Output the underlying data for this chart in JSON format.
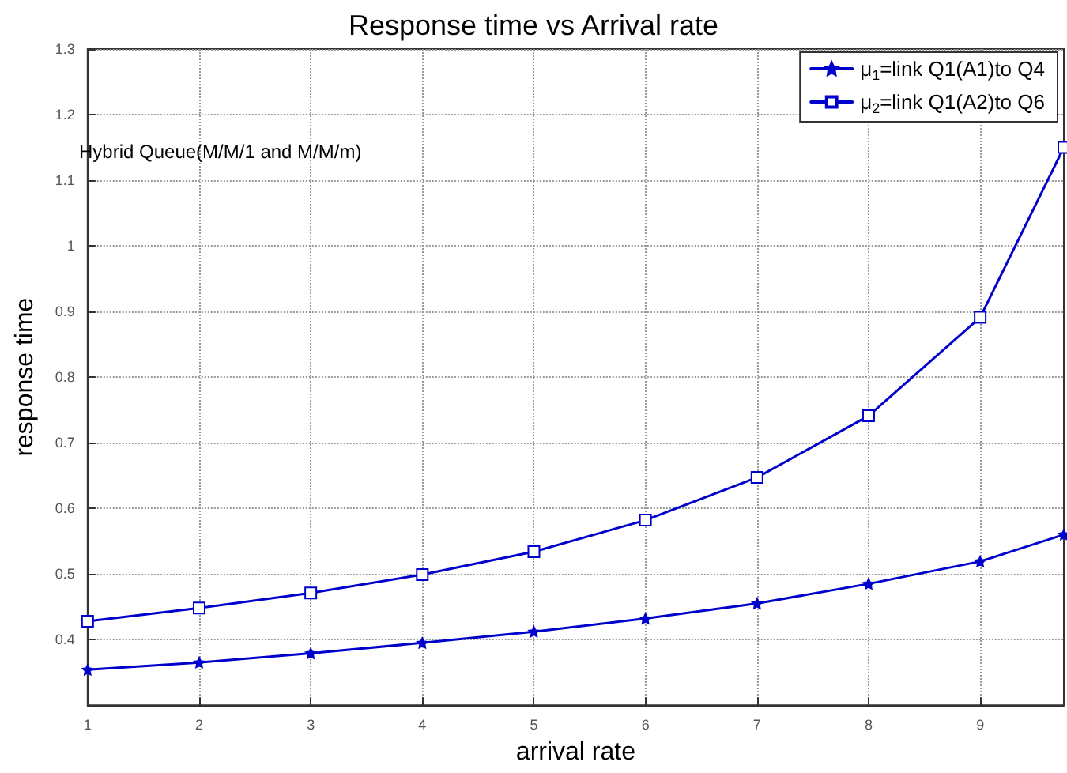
{
  "chart_data": {
    "type": "line",
    "title": "Response time vs Arrival rate",
    "xlabel": "arrival rate",
    "ylabel": "response time",
    "annotations": [
      "Hybrid Queue(M/M/1 and M/M/m)"
    ],
    "x": [
      1,
      2,
      3,
      4,
      5,
      6,
      7,
      8,
      9,
      9.75
    ],
    "series": [
      {
        "name": "μ$_{1}$=link Q1(A1)to Q4",
        "color": "#0000cc",
        "marker": "star",
        "values": [
          0.354,
          0.365,
          0.379,
          0.395,
          0.412,
          0.432,
          0.455,
          0.485,
          0.519,
          0.56
        ]
      },
      {
        "name": "μ$_{2}$=link Q1(A2)to Q6",
        "color": "#0000cc",
        "marker": "square",
        "values": [
          0.428,
          0.448,
          0.471,
          0.499,
          0.534,
          0.582,
          0.647,
          0.741,
          0.891,
          1.15
        ]
      }
    ],
    "xlim": [
      1,
      9.75
    ],
    "xticks": [
      1,
      2,
      3,
      4,
      5,
      6,
      7,
      8,
      9
    ],
    "ylim": [
      0.3,
      1.3
    ],
    "yticks": [
      {
        "value": 0.3,
        "label": null
      },
      0.4,
      0.5,
      0.6,
      0.7,
      0.8,
      0.9,
      1,
      1.1,
      1.2,
      1.3
    ],
    "grid": true,
    "legend": "top right",
    "line_style": "solid"
  }
}
